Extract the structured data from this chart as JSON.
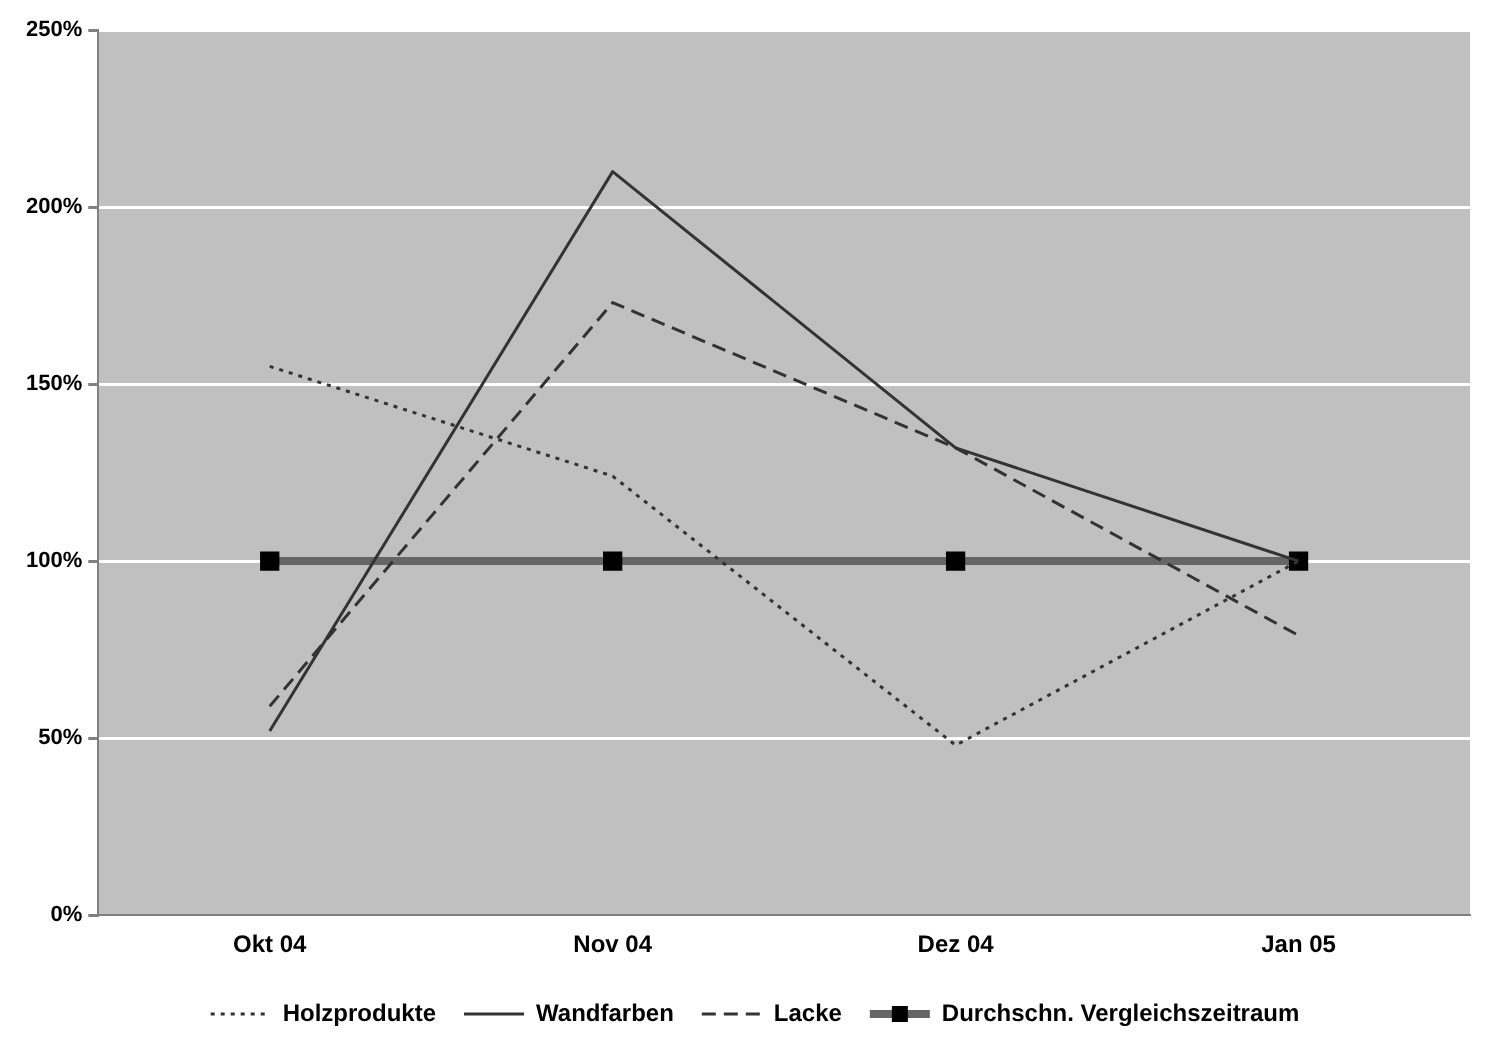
{
  "chart_data": {
    "type": "line",
    "categories": [
      "Okt 04",
      "Nov 04",
      "Dez 04",
      "Jan 05"
    ],
    "series": [
      {
        "name": "Holzprodukte",
        "color": "#333333",
        "line_style": "dotted",
        "marker": "none",
        "values": [
          155,
          124,
          48,
          100
        ]
      },
      {
        "name": "Wandfarben",
        "color": "#333333",
        "line_style": "solid",
        "marker": "none",
        "values": [
          52,
          210,
          132,
          100
        ]
      },
      {
        "name": "Lacke",
        "color": "#333333",
        "line_style": "dashed",
        "marker": "none",
        "values": [
          59,
          173,
          132,
          79
        ]
      },
      {
        "name": "Durchschn. Vergleichszeitraum",
        "color": "#666666",
        "line_style": "solid",
        "marker": "square",
        "values": [
          100,
          100,
          100,
          100
        ]
      }
    ],
    "ylim": [
      0,
      250
    ],
    "yticks": [
      {
        "value": 0,
        "label": "0%"
      },
      {
        "value": 50,
        "label": "50%"
      },
      {
        "value": 100,
        "label": "100%"
      },
      {
        "value": 150,
        "label": "150%"
      },
      {
        "value": 200,
        "label": "200%"
      },
      {
        "value": 250,
        "label": "250%"
      }
    ],
    "grid": "y",
    "legend": "bottom"
  }
}
